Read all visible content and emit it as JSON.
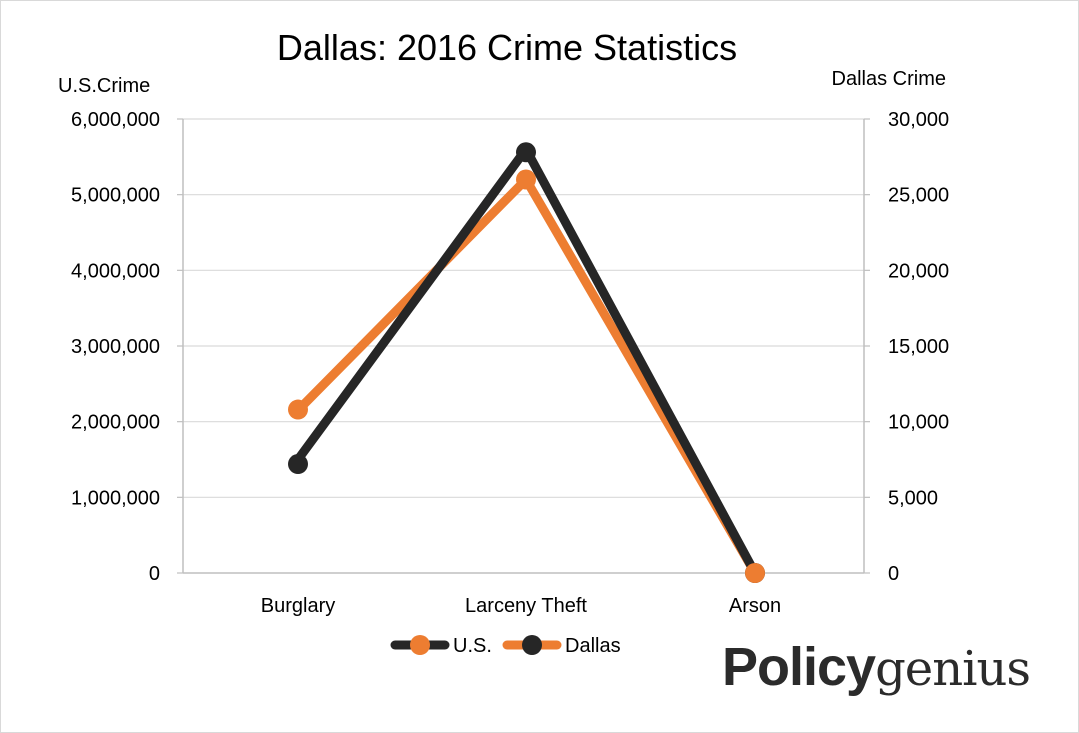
{
  "colors": {
    "us": "#262626",
    "dallas": "#ED7D31",
    "grid": "#d9d9d9",
    "axis": "#bfbfbf"
  },
  "brand": {
    "bold": "Policy",
    "light": "genius"
  },
  "chart_data": {
    "type": "line",
    "title": "Dallas: 2016 Crime Statistics",
    "categories": [
      "Burglary",
      "Larceny Theft",
      "Arson"
    ],
    "series": [
      {
        "name": "U.S.",
        "axis": "left",
        "color": "#262626",
        "values": [
          1500000,
          5600000,
          0
        ]
      },
      {
        "name": "Dallas",
        "axis": "right",
        "color": "#ED7D31",
        "values": [
          10800,
          26000,
          0
        ]
      },
      {
        "name": "",
        "axis": "left",
        "color": "#ED7D31",
        "values": [
          2150000,
          5200000,
          0
        ]
      },
      {
        "name": "",
        "axis": "right",
        "color": "#262626",
        "values": [
          7200,
          27800,
          0
        ]
      }
    ],
    "y_left": {
      "label": "U.S.Crime",
      "ylim": [
        0,
        6000000
      ],
      "ticks": [
        "0",
        "1,000,000",
        "2,000,000",
        "3,000,000",
        "4,000,000",
        "5,000,000",
        "6,000,000"
      ]
    },
    "y_right": {
      "label": "Dallas Crime",
      "ylim": [
        0,
        30000
      ],
      "ticks": [
        "0",
        "5,000",
        "10,000",
        "15,000",
        "20,000",
        "25,000",
        "30,000"
      ]
    },
    "legend": {
      "position": "bottom",
      "items": [
        {
          "label": "U.S.",
          "line_color": "#262626",
          "marker_color": "#ED7D31"
        },
        {
          "label": "Dallas",
          "line_color": "#ED7D31",
          "marker_color": "#262626"
        }
      ]
    },
    "grid": true
  }
}
